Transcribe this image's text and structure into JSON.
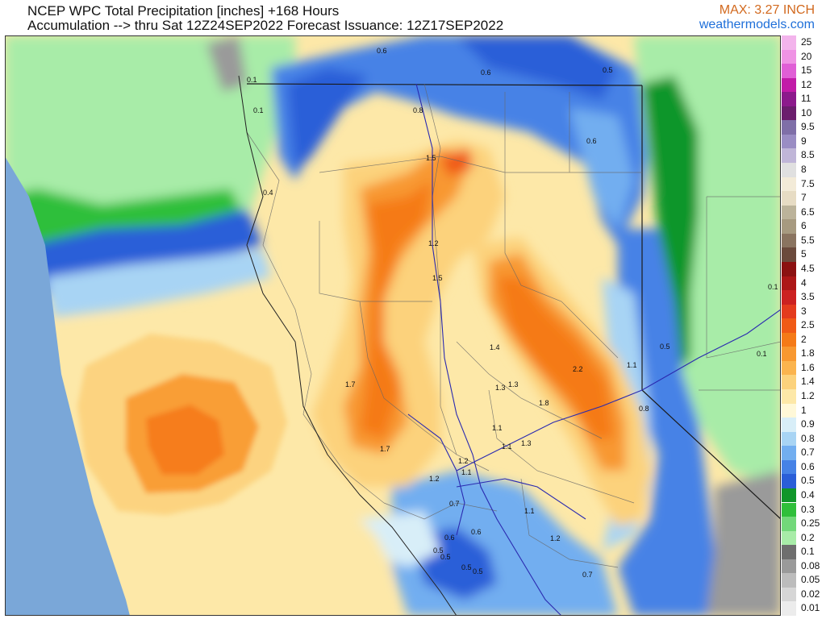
{
  "header": {
    "title_line1": "NCEP WPC Total Precipitation [inches] +168 Hours",
    "title_line2": "Accumulation --> thru Sat 12Z24SEP2022   Forecast Issuance: 12Z17SEP2022",
    "max_label": "MAX: 3.27 INCH",
    "site": "weathermodels.com"
  },
  "legend": [
    {
      "label": "25",
      "color": "#f3b4ec"
    },
    {
      "label": "20",
      "color": "#ef93e4"
    },
    {
      "label": "15",
      "color": "#e05fd6"
    },
    {
      "label": "12",
      "color": "#c21ba8"
    },
    {
      "label": "11",
      "color": "#8c1a8c"
    },
    {
      "label": "10",
      "color": "#6b1e6d"
    },
    {
      "label": "9.5",
      "color": "#7f6fa8"
    },
    {
      "label": "9",
      "color": "#9a8dc4"
    },
    {
      "label": "8.5",
      "color": "#c0b6d8"
    },
    {
      "label": "8",
      "color": "#e0e0e0"
    },
    {
      "label": "7.5",
      "color": "#f3ebd8"
    },
    {
      "label": "7",
      "color": "#e7dcc4"
    },
    {
      "label": "6.5",
      "color": "#bcb39a"
    },
    {
      "label": "6",
      "color": "#a79a80"
    },
    {
      "label": "5.5",
      "color": "#8a7460"
    },
    {
      "label": "5",
      "color": "#6b4a3c"
    },
    {
      "label": "4.5",
      "color": "#8b1111"
    },
    {
      "label": "4",
      "color": "#ac1717"
    },
    {
      "label": "3.5",
      "color": "#cc2121"
    },
    {
      "label": "3",
      "color": "#e43b1d"
    },
    {
      "label": "2.5",
      "color": "#f05a16"
    },
    {
      "label": "2",
      "color": "#f57a17"
    },
    {
      "label": "1.8",
      "color": "#f89830"
    },
    {
      "label": "1.6",
      "color": "#fbb44e"
    },
    {
      "label": "1.4",
      "color": "#fcd27c"
    },
    {
      "label": "1.2",
      "color": "#fde8a8"
    },
    {
      "label": "1",
      "color": "#fff8d8"
    },
    {
      "label": "0.9",
      "color": "#d8eef8"
    },
    {
      "label": "0.8",
      "color": "#a8d4f4"
    },
    {
      "label": "0.7",
      "color": "#72aef0"
    },
    {
      "label": "0.6",
      "color": "#4682e6"
    },
    {
      "label": "0.5",
      "color": "#2a5ed8"
    },
    {
      "label": "0.4",
      "color": "#10962a"
    },
    {
      "label": "0.3",
      "color": "#2fbf3a"
    },
    {
      "label": "0.25",
      "color": "#72d87a"
    },
    {
      "label": "0.2",
      "color": "#a8eca8"
    },
    {
      "label": "0.1",
      "color": "#6e6e6e"
    },
    {
      "label": "0.08",
      "color": "#9a9a9a"
    },
    {
      "label": "0.05",
      "color": "#bcbcbc"
    },
    {
      "label": "0.02",
      "color": "#d6d6d6"
    },
    {
      "label": "0.01",
      "color": "#ececec"
    }
  ],
  "map_values": [
    "0.6",
    "0.6",
    "0.5",
    "0.1",
    "0.1",
    "0.8",
    "0.6",
    "1.5",
    "0.4",
    "1.2",
    "1.5",
    "1.4",
    "1.3",
    "1.3",
    "1.7",
    "2.2",
    "1.1",
    "0.5",
    "1.8",
    "0.8",
    "1.1",
    "1.1",
    "1.3",
    "1.7",
    "1.2",
    "1.1",
    "1.2",
    "0.7",
    "0.6",
    "0.6",
    "0.5",
    "0.5",
    "0.5",
    "0.5",
    "1.1",
    "1.2",
    "0.7",
    "0.1",
    "0.1"
  ]
}
